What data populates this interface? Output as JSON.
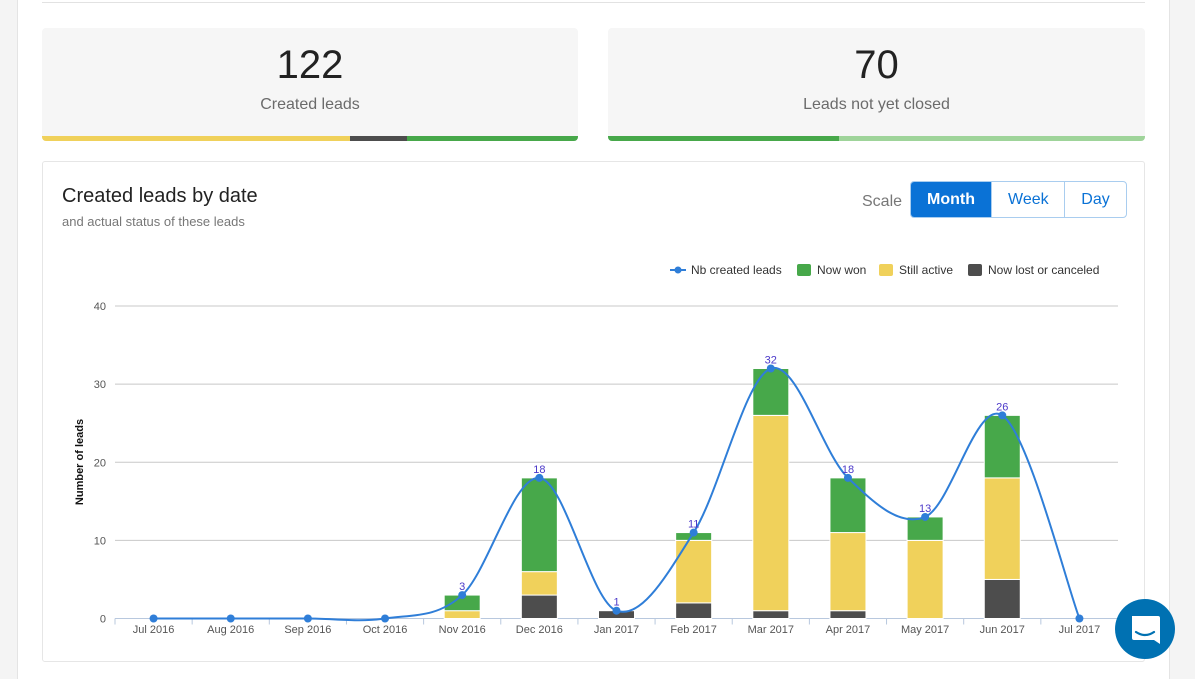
{
  "cards": [
    {
      "value": "122",
      "label": "Created leads",
      "segments": [
        {
          "fraction": 0.574,
          "color": "#f0d15b"
        },
        {
          "fraction": 0.107,
          "color": "#4d4d4d"
        },
        {
          "fraction": 0.319,
          "color": "#47a84a"
        }
      ]
    },
    {
      "value": "70",
      "label": "Leads not yet closed",
      "segments": [
        {
          "fraction": 0.43,
          "color": "#47a84a"
        },
        {
          "fraction": 0.57,
          "color": "#9fd49a"
        }
      ]
    }
  ],
  "panel": {
    "title": "Created leads by date",
    "subtitle": "and actual status of these leads",
    "scale_label": "Scale",
    "buttons": [
      "Month",
      "Week",
      "Day"
    ],
    "active": "Month"
  },
  "chart_data": {
    "type": "bar",
    "stacked": true,
    "categories": [
      "Jul 2016",
      "Aug 2016",
      "Sep 2016",
      "Oct 2016",
      "Nov 2016",
      "Dec 2016",
      "Jan 2017",
      "Feb 2017",
      "Mar 2017",
      "Apr 2017",
      "May 2017",
      "Jun 2017",
      "Jul 2017"
    ],
    "series": [
      {
        "name": "Now lost or canceled",
        "color": "#4d4d4d",
        "values": [
          0,
          0,
          0,
          0,
          0,
          3,
          1,
          2,
          1,
          1,
          0,
          5,
          0
        ]
      },
      {
        "name": "Still active",
        "color": "#f0d15b",
        "values": [
          0,
          0,
          0,
          0,
          1,
          3,
          0,
          8,
          25,
          10,
          10,
          13,
          0
        ]
      },
      {
        "name": "Now won",
        "color": "#47a84a",
        "values": [
          0,
          0,
          0,
          0,
          2,
          12,
          0,
          1,
          6,
          7,
          3,
          8,
          0
        ]
      }
    ],
    "line": {
      "name": "Nb created leads",
      "type": "spline",
      "color": "#2f7ed8",
      "values": [
        0,
        0,
        0,
        0,
        3,
        18,
        1,
        11,
        32,
        18,
        13,
        26,
        0
      ]
    },
    "legend_order": [
      "Nb created leads",
      "Now won",
      "Still active",
      "Now lost or canceled"
    ],
    "ylabel": "Number of leads",
    "xlabel": "",
    "ylim": [
      0,
      40
    ],
    "yticks": [
      0,
      10,
      20,
      30,
      40
    ],
    "grid": true,
    "legend": "top-right"
  }
}
